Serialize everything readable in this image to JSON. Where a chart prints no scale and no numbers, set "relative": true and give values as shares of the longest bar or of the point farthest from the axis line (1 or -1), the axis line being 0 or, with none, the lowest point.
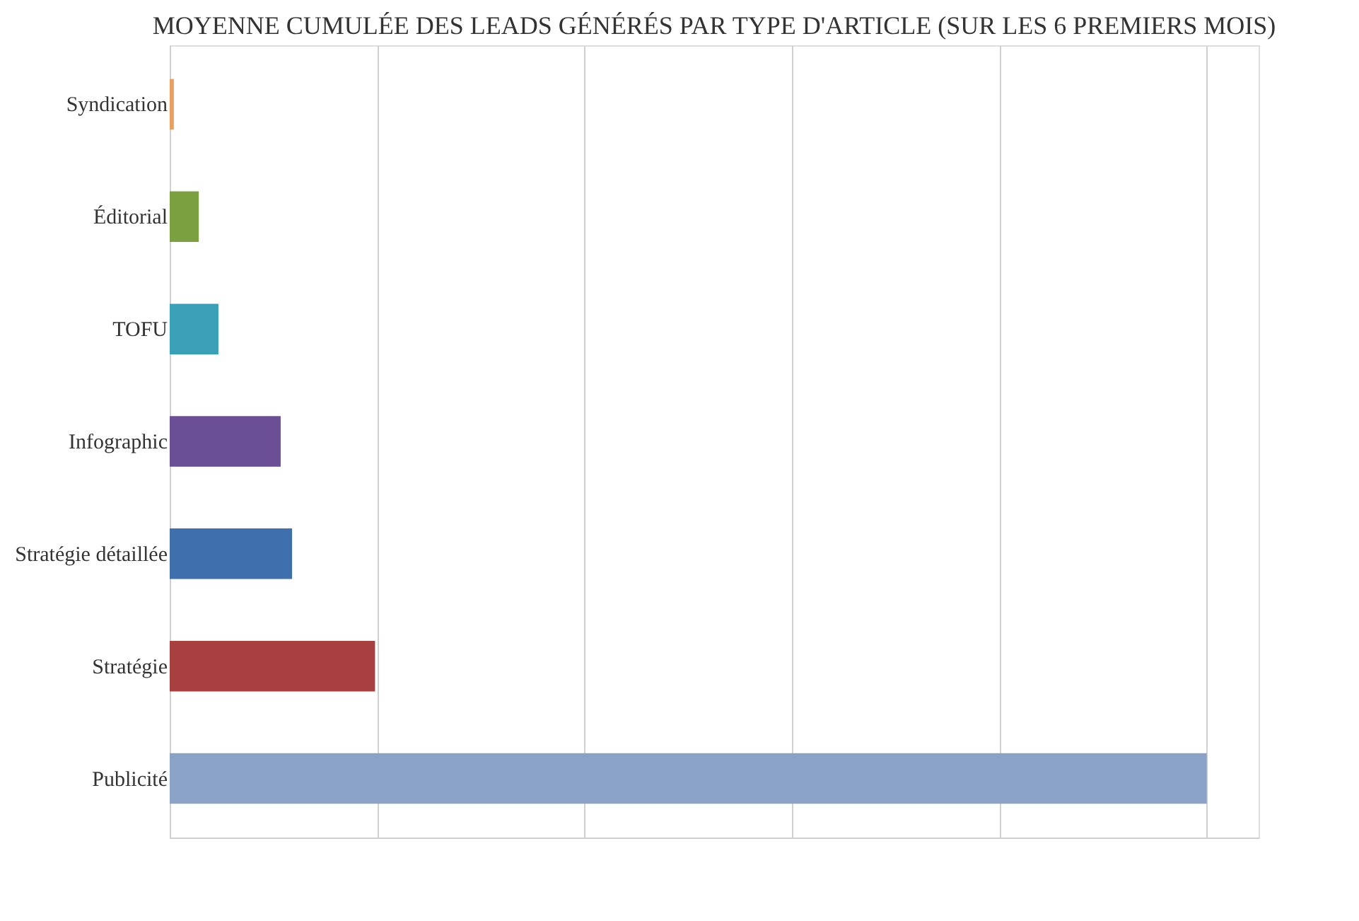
{
  "chart_data": {
    "type": "bar",
    "orientation": "horizontal",
    "relative": true,
    "grid": "x",
    "title": "MOYENNE CUMULÉE DES LEADS GÉNÉRÉS PAR TYPE D'ARTICLE (SUR LES 6 PREMIERS MOIS)",
    "categories": [
      "Syndication",
      "Éditorial",
      "TOFU",
      "Infographic",
      "Stratégie détaillée",
      "Stratégie",
      "Publicité"
    ],
    "values": [
      0.004,
      0.028,
      0.047,
      0.107,
      0.118,
      0.198,
      1
    ],
    "colors": [
      "#e8a060",
      "#7aa040",
      "#3aa0b8",
      "#6a4f96",
      "#3f6fad",
      "#a84040",
      "#8aa2c6"
    ]
  }
}
